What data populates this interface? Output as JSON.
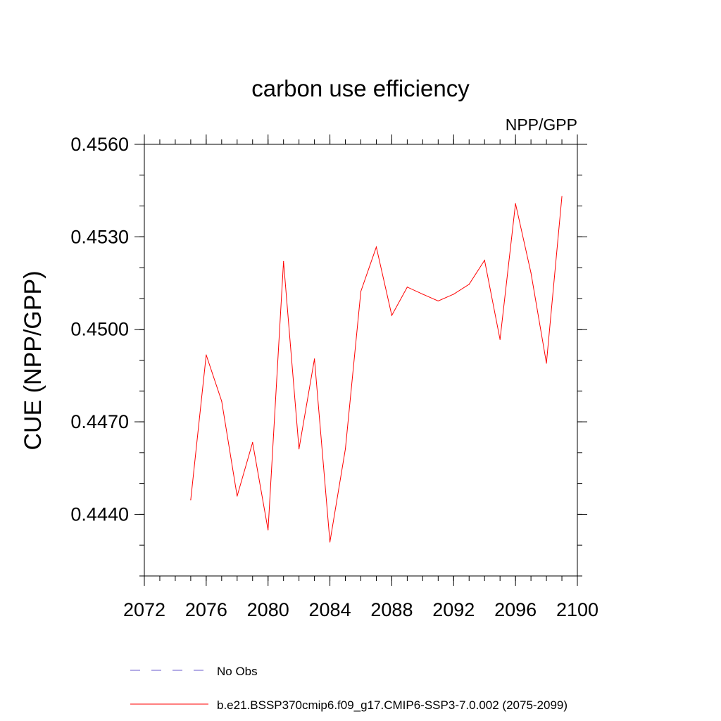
{
  "chart_data": {
    "type": "line",
    "title": "carbon use efficiency",
    "subtitle_right": "NPP/GPP",
    "xlabel": "",
    "ylabel": "CUE  (NPP/GPP)",
    "xlim": [
      2072,
      2100
    ],
    "ylim": [
      0.442,
      0.456
    ],
    "x_ticks": [
      2072,
      2076,
      2080,
      2084,
      2088,
      2092,
      2096,
      2100
    ],
    "x_tick_labels": [
      "2072",
      "2076",
      "2080",
      "2084",
      "2088",
      "2092",
      "2096",
      "2100"
    ],
    "y_ticks": [
      0.444,
      0.447,
      0.45,
      0.453,
      0.456
    ],
    "y_tick_labels": [
      "0.4440",
      "0.4470",
      "0.4500",
      "0.4530",
      "0.4560"
    ],
    "grid": false,
    "series": [
      {
        "name": "b.e21.BSSP370cmip6.f09_g17.CMIP6-SSP3-7.0.002 (2075-2099)",
        "color": "#ff0000",
        "style": "solid",
        "x": [
          2075,
          2076,
          2077,
          2078,
          2079,
          2080,
          2081,
          2082,
          2083,
          2084,
          2085,
          2086,
          2087,
          2088,
          2089,
          2090,
          2091,
          2092,
          2093,
          2094,
          2095,
          2096,
          2097,
          2098,
          2099
        ],
        "values": [
          0.44447,
          0.44917,
          0.44767,
          0.44459,
          0.44633,
          0.44349,
          0.4522,
          0.44612,
          0.44904,
          0.4431,
          0.44612,
          0.45123,
          0.45267,
          0.45045,
          0.45137,
          0.45114,
          0.45092,
          0.45114,
          0.45146,
          0.45224,
          0.44967,
          0.45408,
          0.45183,
          0.4489,
          0.45431
        ]
      }
    ],
    "legend": [
      {
        "label": "No Obs",
        "color": "#6a5acd",
        "style": "dashed"
      },
      {
        "label": "b.e21.BSSP370cmip6.f09_g17.CMIP6-SSP3-7.0.002 (2075-2099)",
        "color": "#ff0000",
        "style": "solid"
      }
    ],
    "legend_position": "bottom"
  }
}
